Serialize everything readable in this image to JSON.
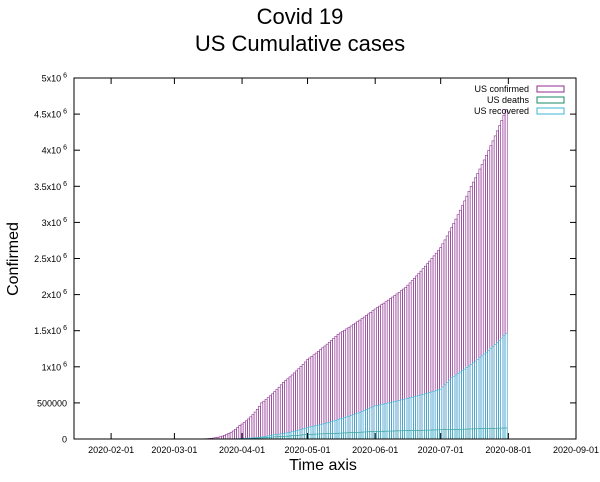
{
  "chart_data": {
    "type": "bar",
    "title": "Covid 19",
    "subtitle": "US Cumulative cases",
    "xlabel": "Time axis",
    "ylabel": "Confirmed",
    "ylim": [
      0,
      5000000
    ],
    "xlim": [
      "2020-01-15",
      "2020-09-01"
    ],
    "grid": false,
    "legend_position": "top-right",
    "x_ticks": [
      "2020-02-01",
      "2020-03-01",
      "2020-04-01",
      "2020-05-01",
      "2020-06-01",
      "2020-07-01",
      "2020-08-01",
      "2020-09-01"
    ],
    "y_ticks": [
      {
        "value": 0,
        "label": "0",
        "exp": ""
      },
      {
        "value": 500000,
        "label": "500000",
        "exp": ""
      },
      {
        "value": 1000000,
        "label": "1x10",
        "exp": "6"
      },
      {
        "value": 1500000,
        "label": "1.5x10",
        "exp": "6"
      },
      {
        "value": 2000000,
        "label": "2x10",
        "exp": "6"
      },
      {
        "value": 2500000,
        "label": "2.5x10",
        "exp": "6"
      },
      {
        "value": 3000000,
        "label": "3x10",
        "exp": "6"
      },
      {
        "value": 3500000,
        "label": "3.5x10",
        "exp": "6"
      },
      {
        "value": 4000000,
        "label": "4x10",
        "exp": "6"
      },
      {
        "value": 4500000,
        "label": "4.5x10",
        "exp": "6"
      },
      {
        "value": 5000000,
        "label": "5x10",
        "exp": "6"
      }
    ],
    "series_keypoints": [
      {
        "name": "US confirmed",
        "color": "#8b2c8f",
        "points": [
          [
            "2020-01-22",
            1
          ],
          [
            "2020-03-01",
            75
          ],
          [
            "2020-03-10",
            1000
          ],
          [
            "2020-03-15",
            3500
          ],
          [
            "2020-03-20",
            19000
          ],
          [
            "2020-03-25",
            66000
          ],
          [
            "2020-03-31",
            188000
          ],
          [
            "2020-04-10",
            500000
          ],
          [
            "2020-04-20",
            785000
          ],
          [
            "2020-05-01",
            1100000
          ],
          [
            "2020-05-15",
            1450000
          ],
          [
            "2020-06-01",
            1800000
          ],
          [
            "2020-06-15",
            2100000
          ],
          [
            "2020-07-01",
            2650000
          ],
          [
            "2020-07-15",
            3500000
          ],
          [
            "2020-07-31",
            4560000
          ]
        ]
      },
      {
        "name": "US deaths",
        "color": "#1a8a6a",
        "points": [
          [
            "2020-01-22",
            0
          ],
          [
            "2020-03-01",
            1
          ],
          [
            "2020-03-15",
            60
          ],
          [
            "2020-03-25",
            1000
          ],
          [
            "2020-04-01",
            5000
          ],
          [
            "2020-04-15",
            28000
          ],
          [
            "2020-05-01",
            64000
          ],
          [
            "2020-06-01",
            105000
          ],
          [
            "2020-07-01",
            128000
          ],
          [
            "2020-07-31",
            153000
          ]
        ]
      },
      {
        "name": "US recovered",
        "color": "#38b4d8",
        "points": [
          [
            "2020-01-22",
            0
          ],
          [
            "2020-03-01",
            7
          ],
          [
            "2020-03-20",
            100
          ],
          [
            "2020-03-31",
            7000
          ],
          [
            "2020-04-15",
            55000
          ],
          [
            "2020-05-01",
            160000
          ],
          [
            "2020-05-15",
            270000
          ],
          [
            "2020-06-01",
            460000
          ],
          [
            "2020-07-01",
            690000
          ],
          [
            "2020-07-06",
            850000
          ],
          [
            "2020-07-31",
            1460000
          ]
        ]
      }
    ]
  }
}
